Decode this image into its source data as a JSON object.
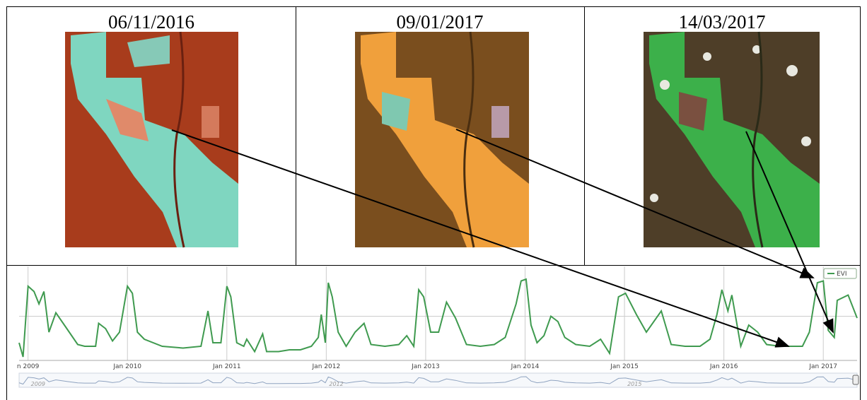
{
  "panels": [
    {
      "date": "06/11/2016"
    },
    {
      "date": "09/01/2017"
    },
    {
      "date": "14/03/2017"
    }
  ],
  "chart_data": {
    "type": "line",
    "x": [
      2008.91,
      2008.95,
      2009.0,
      2009.06,
      2009.11,
      2009.16,
      2009.21,
      2009.28,
      2009.39,
      2009.5,
      2009.57,
      2009.68,
      2009.71,
      2009.78,
      2009.85,
      2009.92,
      2010.0,
      2010.05,
      2010.1,
      2010.17,
      2010.35,
      2010.56,
      2010.74,
      2010.81,
      2010.86,
      2010.94,
      2011.0,
      2011.04,
      2011.1,
      2011.17,
      2011.2,
      2011.28,
      2011.36,
      2011.4,
      2011.52,
      2011.63,
      2011.74,
      2011.85,
      2011.92,
      2011.95,
      2011.99,
      2012.02,
      2012.06,
      2012.12,
      2012.2,
      2012.29,
      2012.38,
      2012.45,
      2012.59,
      2012.73,
      2012.81,
      2012.88,
      2012.93,
      2012.98,
      2013.05,
      2013.13,
      2013.21,
      2013.3,
      2013.41,
      2013.55,
      2013.69,
      2013.8,
      2013.91,
      2013.96,
      2014.01,
      2014.06,
      2014.12,
      2014.19,
      2014.26,
      2014.33,
      2014.4,
      2014.51,
      2014.65,
      2014.76,
      2014.85,
      2014.94,
      2015.01,
      2015.12,
      2015.22,
      2015.37,
      2015.47,
      2015.61,
      2015.76,
      2015.86,
      2015.93,
      2015.98,
      2016.04,
      2016.08,
      2016.17,
      2016.25,
      2016.34,
      2016.43,
      2016.57,
      2016.79,
      2016.86,
      2016.94,
      2017.0,
      2017.05,
      2017.11,
      2017.14,
      2017.25,
      2017.34
    ],
    "series": [
      {
        "name": "EVI",
        "color": "#3f9a4f",
        "values": [
          0.2,
          0.04,
          0.84,
          0.78,
          0.64,
          0.78,
          0.32,
          0.54,
          0.36,
          0.18,
          0.16,
          0.16,
          0.42,
          0.36,
          0.22,
          0.32,
          0.84,
          0.76,
          0.32,
          0.24,
          0.16,
          0.14,
          0.16,
          0.56,
          0.2,
          0.2,
          0.84,
          0.72,
          0.2,
          0.16,
          0.24,
          0.1,
          0.3,
          0.1,
          0.1,
          0.12,
          0.12,
          0.16,
          0.26,
          0.52,
          0.2,
          0.88,
          0.72,
          0.32,
          0.16,
          0.32,
          0.42,
          0.18,
          0.16,
          0.18,
          0.28,
          0.16,
          0.8,
          0.72,
          0.32,
          0.32,
          0.66,
          0.48,
          0.18,
          0.16,
          0.18,
          0.26,
          0.64,
          0.9,
          0.92,
          0.4,
          0.2,
          0.28,
          0.5,
          0.44,
          0.26,
          0.18,
          0.16,
          0.24,
          0.08,
          0.72,
          0.76,
          0.52,
          0.32,
          0.56,
          0.18,
          0.16,
          0.16,
          0.24,
          0.52,
          0.8,
          0.56,
          0.74,
          0.16,
          0.4,
          0.32,
          0.18,
          0.16,
          0.16,
          0.32,
          0.88,
          0.9,
          0.34,
          0.26,
          0.68,
          0.74,
          0.48
        ]
      }
    ],
    "xlim": [
      2008.91,
      2017.34
    ],
    "xticks": [
      {
        "value": 2009,
        "label": "n 2009"
      },
      {
        "value": 2010,
        "label": "Jan 2010"
      },
      {
        "value": 2011,
        "label": "Jan 2011"
      },
      {
        "value": 2012,
        "label": "Jan 2012"
      },
      {
        "value": 2013,
        "label": "Jan 2013"
      },
      {
        "value": 2014,
        "label": "Jan 2014"
      },
      {
        "value": 2015,
        "label": "Jan 2015"
      },
      {
        "value": 2016,
        "label": "Jan 2016"
      },
      {
        "value": 2017,
        "label": "Jan 2017"
      }
    ],
    "ylim": [
      0,
      1
    ],
    "ygrid": [
      0.5
    ],
    "grid": true,
    "navigator_ticks": [
      2009,
      2012,
      2015
    ]
  }
}
